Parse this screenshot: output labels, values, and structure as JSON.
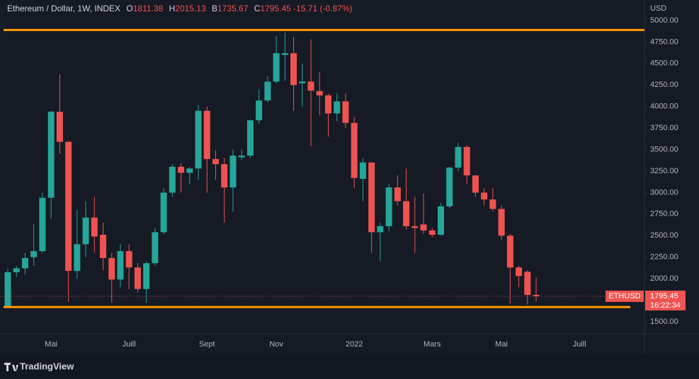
{
  "chart_data": {
    "type": "candlestick",
    "title": "Ethereum / Dollar, 1W, INDEX",
    "ohlc_labels": [
      "O",
      "H",
      "B",
      "C"
    ],
    "change": "-15.71 (-0.87%)",
    "y_label": "USD",
    "symbol": "ETHUSD",
    "countdown": "16:22:34",
    "brand": "TradingView",
    "up_color": "#26a69a",
    "down_color": "#ef5350",
    "grid": false,
    "categories": [
      null,
      null,
      null,
      null,
      null,
      "Mai",
      null,
      null,
      null,
      null,
      null,
      null,
      null,
      null,
      "Juill",
      null,
      null,
      null,
      null,
      null,
      null,
      null,
      null,
      "Sept",
      null,
      null,
      null,
      null,
      null,
      null,
      null,
      "Nov",
      null,
      null,
      null,
      null,
      null,
      null,
      null,
      null,
      "2022",
      null,
      null,
      null,
      null,
      null,
      null,
      null,
      null,
      "Mars",
      null,
      null,
      null,
      null,
      null,
      null,
      null,
      "Mai",
      null,
      null,
      null,
      null,
      null,
      null,
      null,
      null,
      "Juill"
    ],
    "open": [
      1660,
      2075,
      2120,
      2250,
      2320,
      2940,
      3940,
      3590,
      2090,
      2400,
      2710,
      2510,
      2240,
      1990,
      2320,
      2130,
      1880,
      2180,
      2540,
      3000,
      3300,
      3230,
      3280,
      3950,
      3390,
      3330,
      3060,
      3410,
      3430,
      3840,
      4070,
      4290,
      4600,
      4620,
      4270,
      4290,
      4180,
      4130,
      3920,
      4060,
      3810,
      3160,
      3350,
      2540,
      2610,
      3060,
      2900,
      2610,
      2630,
      2560,
      2510,
      2840,
      3290,
      3530,
      3200,
      3000,
      2920,
      2810,
      2500,
      2130,
      2080,
      1811.38,
      null,
      null,
      null,
      null,
      null
    ],
    "high": [
      2115,
      2150,
      2300,
      2630,
      3000,
      3950,
      4375,
      3600,
      2800,
      2900,
      2950,
      2650,
      2300,
      2400,
      2400,
      2180,
      2200,
      2590,
      3050,
      3330,
      3340,
      3300,
      4020,
      4000,
      3490,
      3400,
      3500,
      3500,
      3850,
      4200,
      4350,
      4820,
      4860,
      4810,
      4500,
      4780,
      4400,
      4150,
      4150,
      4150,
      3880,
      3400,
      3350,
      2650,
      3100,
      3200,
      3280,
      2950,
      2990,
      2590,
      2880,
      3300,
      3580,
      3550,
      3200,
      3050,
      3050,
      2850,
      2520,
      2150,
      2100,
      2015.13,
      null,
      null,
      null,
      null,
      null
    ],
    "low": [
      1660,
      2020,
      2050,
      2150,
      2300,
      2700,
      3450,
      1730,
      2000,
      2250,
      2300,
      2100,
      1720,
      1900,
      1880,
      1840,
      1720,
      2150,
      2520,
      2950,
      3000,
      3100,
      3150,
      3000,
      3150,
      2650,
      2780,
      3380,
      3400,
      3800,
      4050,
      4270,
      4300,
      3950,
      4000,
      3540,
      3900,
      3650,
      3830,
      3750,
      3050,
      2900,
      2300,
      2200,
      2550,
      2850,
      2570,
      2300,
      2520,
      2480,
      2500,
      2820,
      3250,
      3100,
      2950,
      2850,
      2780,
      2450,
      1710,
      1900,
      1700,
      1735.67,
      null,
      null,
      null,
      null,
      null
    ],
    "close": [
      2075,
      2120,
      2240,
      2320,
      2940,
      3940,
      3590,
      2090,
      2400,
      2710,
      2490,
      2240,
      1990,
      2320,
      2130,
      1880,
      2180,
      2540,
      3000,
      3300,
      3230,
      3280,
      3950,
      3390,
      3330,
      3060,
      3430,
      3430,
      3840,
      4070,
      4290,
      4620,
      4620,
      4250,
      4290,
      4185,
      4130,
      3920,
      4060,
      3810,
      3170,
      3350,
      2540,
      2610,
      3060,
      2900,
      2610,
      2590,
      2560,
      2510,
      2840,
      3290,
      3530,
      3200,
      3000,
      2920,
      2810,
      2500,
      2130,
      2030,
      1811,
      1795.45,
      null,
      null,
      null,
      null,
      null
    ],
    "hlines": [
      {
        "value": 4890,
        "color": "#ff9800"
      },
      {
        "value": 1670,
        "color": "#ff9800"
      }
    ],
    "ylim": [
      1360,
      5238
    ],
    "yticks": [
      {
        "value": 1500,
        "label": "1500.00"
      },
      {
        "value": 2000,
        "label": "2000.00"
      },
      {
        "value": 2250,
        "label": "2250.00"
      },
      {
        "value": 2500,
        "label": "2500.00"
      },
      {
        "value": 2750,
        "label": "2750.00"
      },
      {
        "value": 3000,
        "label": "3000.00"
      },
      {
        "value": 3250,
        "label": "3250.00"
      },
      {
        "value": 3500,
        "label": "3500.00"
      },
      {
        "value": 3750,
        "label": "3750.00"
      },
      {
        "value": 4000,
        "label": "4000.00"
      },
      {
        "value": 4250,
        "label": "4250.00"
      },
      {
        "value": 4500,
        "label": "4500.00"
      },
      {
        "value": 4750,
        "label": "4750.00"
      },
      {
        "value": 5000,
        "label": "5000.00"
      }
    ]
  }
}
